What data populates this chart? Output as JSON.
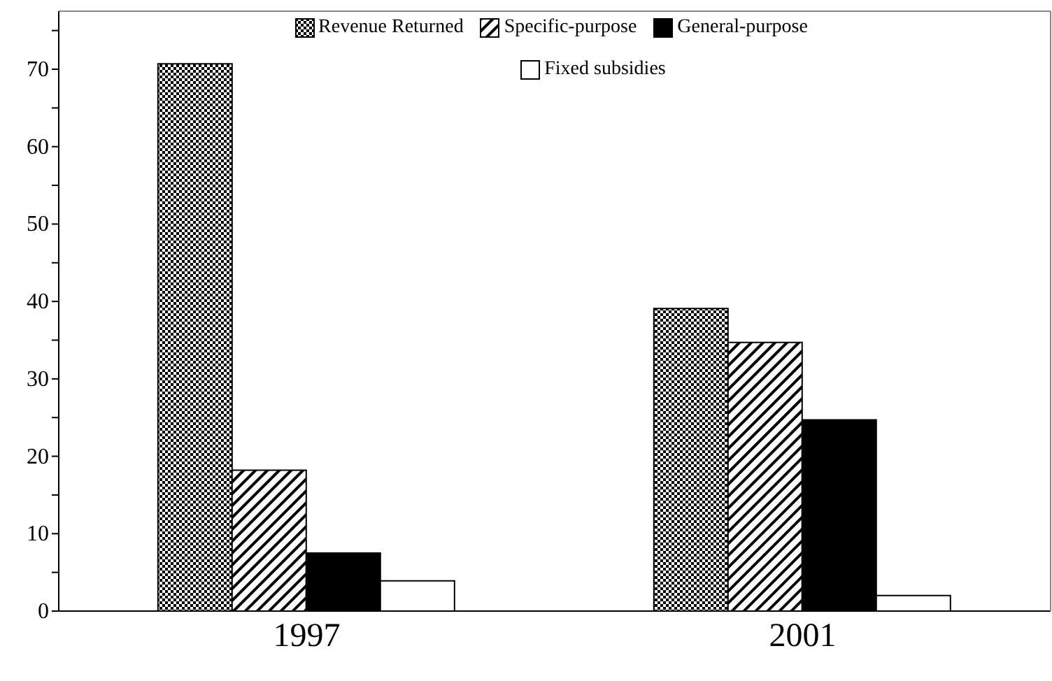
{
  "chart_data": {
    "type": "bar",
    "categories": [
      "1997",
      "2001"
    ],
    "series": [
      {
        "name": "Revenue Returned",
        "color": "#000000",
        "values": [
          70.7,
          39.1
        ]
      },
      {
        "name": "Specific-purpose",
        "color": "#000000",
        "values": [
          18.2,
          34.7
        ]
      },
      {
        "name": "General-purpose",
        "color": "#000000",
        "values": [
          7.5,
          24.7
        ]
      },
      {
        "name": "Fixed subsidies",
        "color": "#ffffff",
        "values": [
          3.9,
          2.0
        ]
      }
    ],
    "ylim": [
      0,
      77.5
    ],
    "yticks": [
      0,
      {
        "value": 5,
        "label": null
      },
      10,
      {
        "value": 15,
        "label": null
      },
      20,
      {
        "value": 25,
        "label": null
      },
      30,
      {
        "value": 35,
        "label": null
      },
      40,
      {
        "value": 45,
        "label": null
      },
      50,
      {
        "value": 55,
        "label": null
      },
      60,
      {
        "value": 65,
        "label": null
      },
      70,
      {
        "value": 75,
        "label": null
      }
    ],
    "grid": false,
    "legend": "top"
  }
}
